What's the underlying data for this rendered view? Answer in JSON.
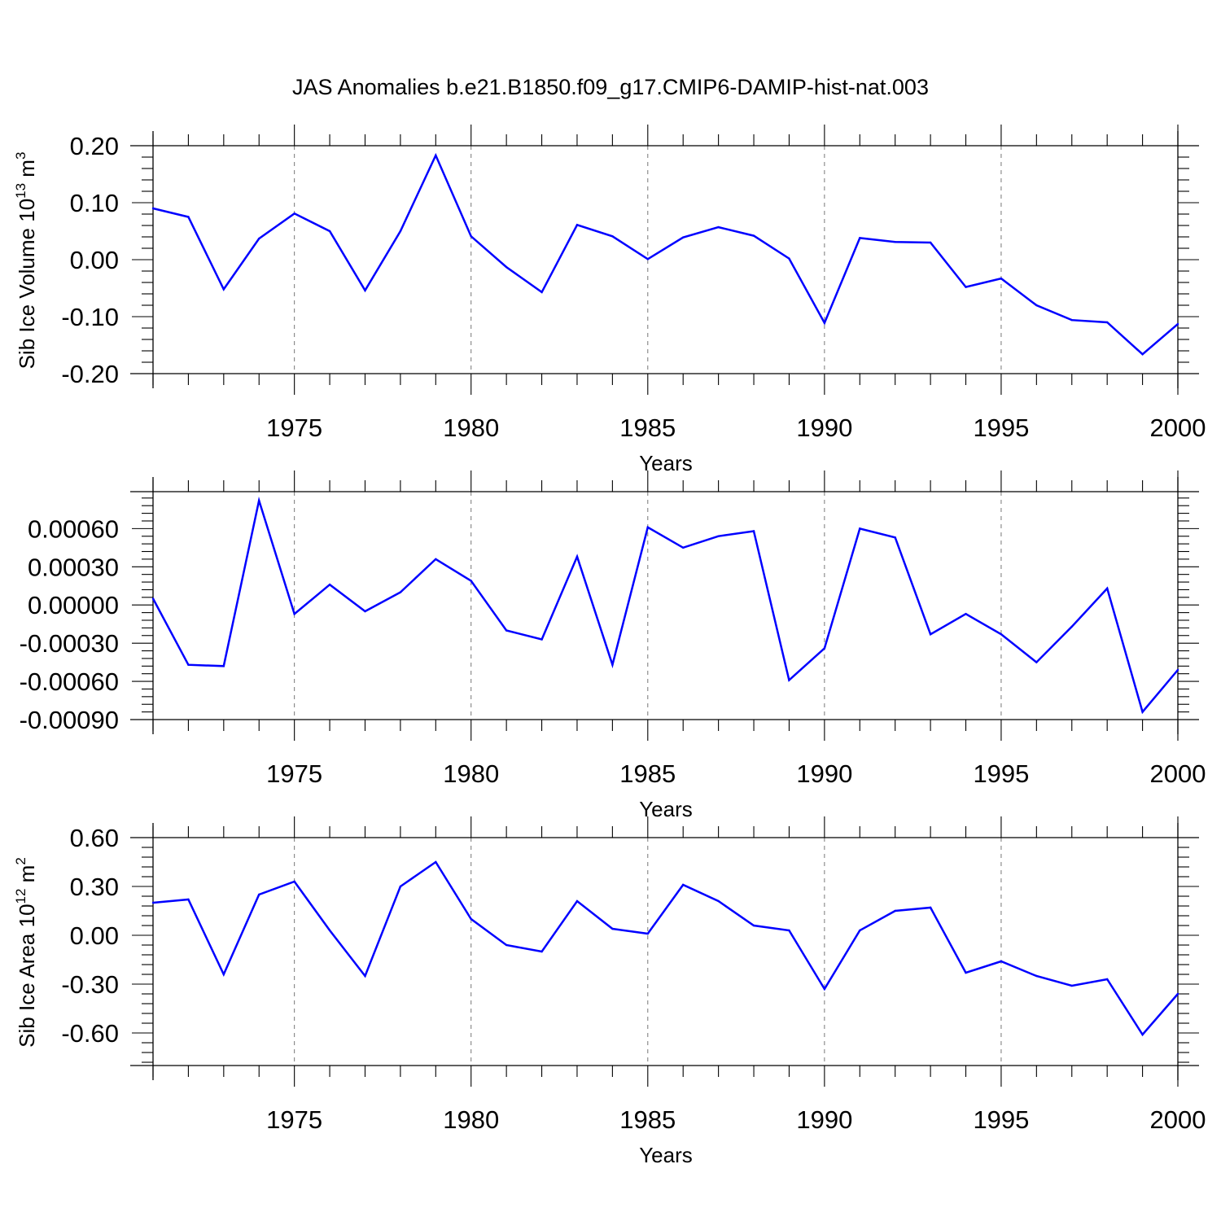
{
  "title": "JAS Anomalies b.e21.B1850.f09_g17.CMIP6-DAMIP-hist-nat.003",
  "colors": {
    "series": "#0000ff",
    "axes": "#000000",
    "grid": "#777777",
    "background": "#ffffff"
  },
  "chart_data": [
    {
      "type": "line",
      "xlabel": "Years",
      "ylabel": "Sib Ice Volume",
      "ylabel_power": "13",
      "ylabel_unit": "m",
      "ylabel_unit_power": "3",
      "xlim": [
        1971,
        2000
      ],
      "ylim": [
        -0.2,
        0.2
      ],
      "x_ticks": [
        1975,
        1980,
        1985,
        1990,
        1995,
        2000
      ],
      "x_tick_labels": [
        "1975",
        "1980",
        "1985",
        "1990",
        "1995",
        "2000"
      ],
      "y_ticks": [
        0.2,
        0.1,
        0.0,
        -0.1,
        -0.2
      ],
      "y_tick_labels": [
        "0.20",
        "0.10",
        "0.00",
        "-0.10",
        "-0.20"
      ],
      "grid": "vertical dashed at labeled years",
      "x": [
        1971,
        1972,
        1973,
        1974,
        1975,
        1976,
        1977,
        1978,
        1979,
        1980,
        1981,
        1982,
        1983,
        1984,
        1985,
        1986,
        1987,
        1988,
        1989,
        1990,
        1991,
        1992,
        1993,
        1994,
        1995,
        1996,
        1997,
        1998,
        1999,
        2000
      ],
      "values": [
        0.09,
        0.075,
        -0.052,
        0.037,
        0.081,
        0.05,
        -0.054,
        0.05,
        0.183,
        0.041,
        -0.013,
        -0.057,
        0.061,
        0.041,
        0.001,
        0.039,
        0.057,
        0.042,
        0.002,
        -0.111,
        0.038,
        0.031,
        0.03,
        -0.048,
        -0.033,
        -0.08,
        -0.106,
        -0.11,
        -0.166,
        -0.113
      ]
    },
    {
      "type": "line",
      "xlabel": "Years",
      "xlim": [
        1971,
        2000
      ],
      "ylim": [
        -0.0009,
        0.00089
      ],
      "x_ticks": [
        1975,
        1980,
        1985,
        1990,
        1995,
        2000
      ],
      "x_tick_labels": [
        "1975",
        "1980",
        "1985",
        "1990",
        "1995",
        "2000"
      ],
      "y_ticks": [
        0.0006,
        0.0003,
        0.0,
        -0.0003,
        -0.0006,
        -0.0009
      ],
      "y_tick_labels": [
        "0.00060",
        "0.00030",
        "0.00000",
        "-0.00030",
        "-0.00060",
        "-0.00090"
      ],
      "grid": "vertical dashed at labeled years",
      "x": [
        1971,
        1972,
        1973,
        1974,
        1975,
        1976,
        1977,
        1978,
        1979,
        1980,
        1981,
        1982,
        1983,
        1984,
        1985,
        1986,
        1987,
        1988,
        1989,
        1990,
        1991,
        1992,
        1993,
        1994,
        1995,
        1996,
        1997,
        1998,
        1999,
        2000
      ],
      "values": [
        5e-05,
        -0.00047,
        -0.00048,
        0.00082,
        -7e-05,
        0.00016,
        -5e-05,
        0.0001,
        0.00036,
        0.00019,
        -0.0002,
        -0.00027,
        0.00038,
        -0.00047,
        0.00061,
        0.00045,
        0.00054,
        0.00058,
        -0.00059,
        -0.00034,
        0.0006,
        0.00053,
        -0.00023,
        -7e-05,
        -0.00023,
        -0.00045,
        -0.00017,
        0.00013,
        -0.00084,
        -0.00051
      ]
    },
    {
      "type": "line",
      "xlabel": "Years",
      "ylabel": "Sib Ice Area",
      "ylabel_power": "12",
      "ylabel_unit": "m",
      "ylabel_unit_power": "2",
      "xlim": [
        1971,
        2000
      ],
      "ylim": [
        -0.8,
        0.6
      ],
      "x_ticks": [
        1975,
        1980,
        1985,
        1990,
        1995,
        2000
      ],
      "x_tick_labels": [
        "1975",
        "1980",
        "1985",
        "1990",
        "1995",
        "2000"
      ],
      "y_ticks": [
        0.6,
        0.3,
        0.0,
        -0.3,
        -0.6
      ],
      "y_tick_labels": [
        "0.60",
        "0.30",
        "0.00",
        "-0.30",
        "-0.60"
      ],
      "grid": "vertical dashed at labeled years",
      "x": [
        1971,
        1972,
        1973,
        1974,
        1975,
        1976,
        1977,
        1978,
        1979,
        1980,
        1981,
        1982,
        1983,
        1984,
        1985,
        1986,
        1987,
        1988,
        1989,
        1990,
        1991,
        1992,
        1993,
        1994,
        1995,
        1996,
        1997,
        1998,
        1999,
        2000
      ],
      "values": [
        0.2,
        0.22,
        -0.24,
        0.25,
        0.33,
        0.03,
        -0.25,
        0.3,
        0.45,
        0.1,
        -0.06,
        -0.1,
        0.21,
        0.04,
        0.01,
        0.31,
        0.21,
        0.06,
        0.03,
        -0.33,
        0.03,
        0.15,
        0.17,
        -0.23,
        -0.16,
        -0.25,
        -0.31,
        -0.27,
        -0.61,
        -0.36
      ]
    }
  ]
}
